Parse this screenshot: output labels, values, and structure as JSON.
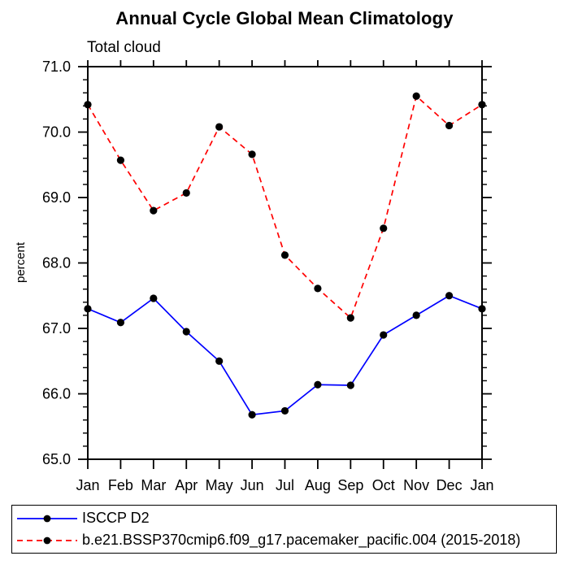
{
  "chart_data": {
    "type": "line",
    "title": "Annual Cycle Global Mean Climatology",
    "subtitle": "Total cloud",
    "ylabel": "percent",
    "xlabel": "",
    "categories": [
      "Jan",
      "Feb",
      "Mar",
      "Apr",
      "May",
      "Jun",
      "Jul",
      "Aug",
      "Sep",
      "Oct",
      "Nov",
      "Dec",
      "Jan"
    ],
    "ylim": [
      65.0,
      71.0
    ],
    "ytick_interval": 1.0,
    "yminor_interval": 0.2,
    "ytick_labels": [
      "65.0",
      "66.0",
      "67.0",
      "68.0",
      "69.0",
      "70.0",
      "71.0"
    ],
    "grid": false,
    "legend_position": "bottom-left",
    "axis_color": "#000000",
    "marker": {
      "shape": "circle",
      "color": "#000000"
    },
    "series": [
      {
        "name": "ISCCP D2",
        "color": "#0000ff",
        "line_style": "solid",
        "values": [
          67.3,
          67.09,
          67.46,
          66.95,
          66.5,
          65.68,
          65.74,
          66.14,
          66.13,
          66.9,
          67.2,
          67.5,
          67.3
        ]
      },
      {
        "name": "b.e21.BSSP370cmip6.f09_g17.pacemaker_pacific.004 (2015-2018)",
        "color": "#ff0000",
        "line_style": "dashed",
        "values": [
          70.42,
          69.57,
          68.8,
          69.07,
          70.08,
          69.66,
          68.12,
          67.61,
          67.16,
          68.53,
          70.55,
          70.1,
          70.42
        ]
      }
    ]
  }
}
